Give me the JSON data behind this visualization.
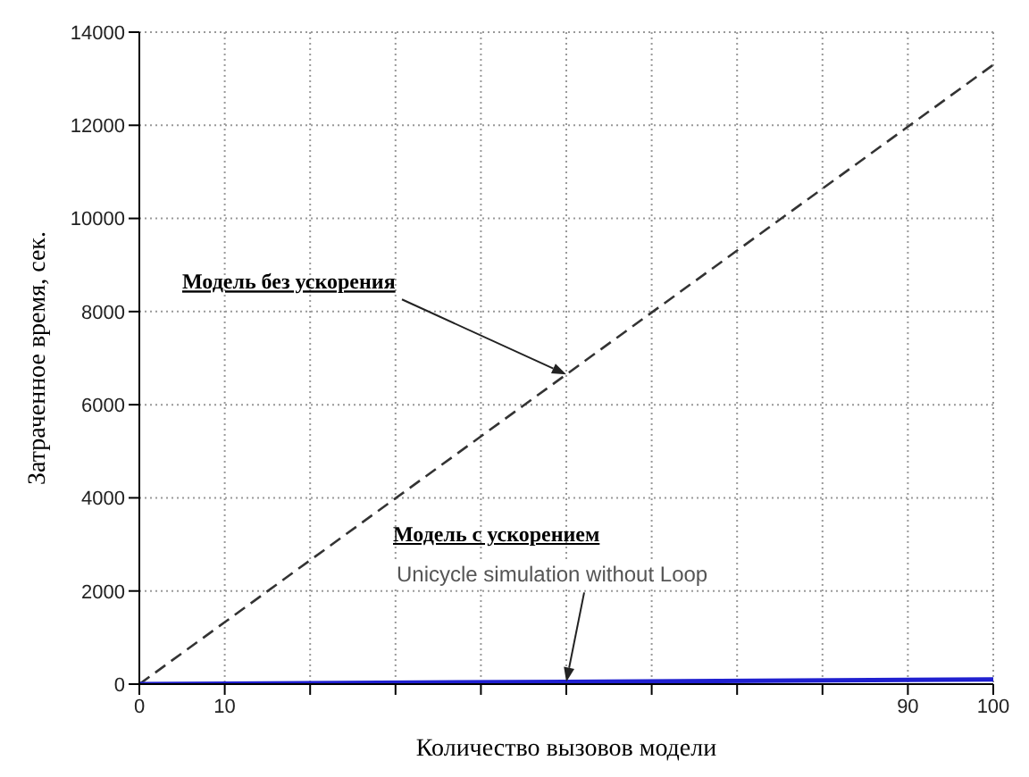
{
  "chart_data": {
    "type": "line",
    "xlabel": "Количество вызовов модели",
    "ylabel": "Затраченное время, сек.",
    "x": [
      0,
      50,
      100
    ],
    "series": [
      {
        "color": "#333333",
        "line_style": "dashed",
        "values": [
          0,
          6650,
          13300
        ]
      },
      {
        "color": "#2020d0",
        "line_style": "solid",
        "values": [
          0,
          50,
          100
        ]
      }
    ],
    "xlim": [
      0,
      100
    ],
    "xticks": [
      0,
      10,
      {
        "value": 20,
        "label": null
      },
      {
        "value": 30,
        "label": null
      },
      {
        "value": 40,
        "label": null
      },
      {
        "value": 50,
        "label": null
      },
      {
        "value": 60,
        "label": null
      },
      {
        "value": 70,
        "label": null
      },
      {
        "value": 80,
        "label": null
      },
      90,
      100
    ],
    "ylim": [
      0,
      14000
    ],
    "yticks": [
      0,
      2000,
      4000,
      6000,
      8000,
      10000,
      12000,
      14000
    ],
    "grid": true,
    "marker": "none",
    "annotations": [
      {
        "text": "Модель без ускорения",
        "x": 50,
        "y": 6650
      },
      "Модель с ускорением",
      {
        "text": "Unicycle simulation without Loop",
        "x": 50,
        "y": 50
      }
    ]
  }
}
